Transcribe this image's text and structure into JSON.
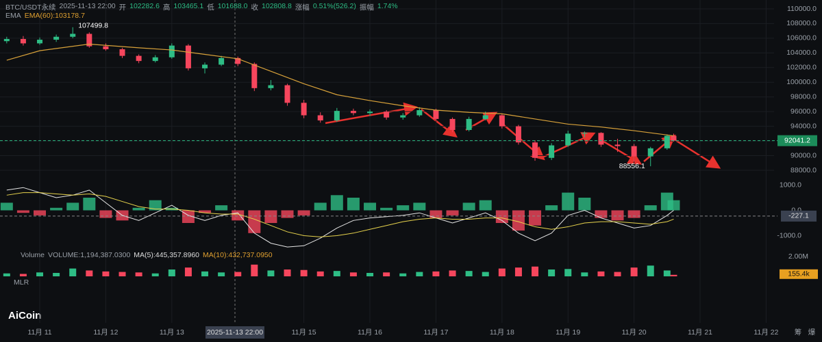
{
  "header": {
    "symbol": "BTC/USDT永续",
    "datetime": "2025-11-13 22:00",
    "open_label": "开",
    "open": "102282.6",
    "high_label": "高",
    "high": "103465.1",
    "low_label": "低",
    "low": "101688.0",
    "close_label": "收",
    "close": "102808.8",
    "change_label": "涨幅",
    "change": "0.51%(526.2)",
    "amp_label": "振幅",
    "amp": "1.74%"
  },
  "ema_panel": {
    "name": "EMA",
    "value": "EMA(60):103178.7"
  },
  "volume_panel": {
    "name": "Volume",
    "volume": "VOLUME:1,194,387.0300",
    "ma5": "MA(5):445,357.8960",
    "ma10": "MA(10):432,737.0950"
  },
  "mlr_label": "MLR",
  "logo": "AiCoin",
  "crosshair_label": "2025-11-13 22:00",
  "side_icons": [
    "筹",
    "爆"
  ],
  "chart_data": [
    {
      "type": "candlestick",
      "up_color": "#2ebd85",
      "down_color": "#f6465d",
      "xlim": [
        10.45,
        22.12
      ],
      "ylim": [
        86230,
        110930
      ],
      "xticks": [
        {
          "value": 11,
          "label": "11月 11"
        },
        {
          "value": 12,
          "label": "11月 12"
        },
        {
          "value": 13,
          "label": "11月 13"
        },
        {
          "value": 15,
          "label": "11月 15"
        },
        {
          "value": 16,
          "label": "11月 16"
        },
        {
          "value": 17,
          "label": "11月 17"
        },
        {
          "value": 18,
          "label": "11月 18"
        },
        {
          "value": 19,
          "label": "11月 19"
        },
        {
          "value": 20,
          "label": "11月 20"
        },
        {
          "value": 21,
          "label": "11月 21"
        },
        {
          "value": 22,
          "label": "11月 22"
        }
      ],
      "yticks": [
        {
          "value": 88000,
          "label": "88000.0"
        },
        {
          "value": 90000,
          "label": "90000.0"
        },
        {
          "value": 92000,
          "label": "92000.0"
        },
        {
          "value": 94000,
          "label": "94000.0"
        },
        {
          "value": 96000,
          "label": "96000.0"
        },
        {
          "value": 98000,
          "label": "98000.0"
        },
        {
          "value": 100000,
          "label": "100000.0"
        },
        {
          "value": 102000,
          "label": "102000.0"
        },
        {
          "value": 104000,
          "label": "104000.0"
        },
        {
          "value": 106000,
          "label": "106000.0"
        },
        {
          "value": 108000,
          "label": "108000.0"
        },
        {
          "value": 110000,
          "label": "110000.0"
        }
      ],
      "x": [
        10.5,
        10.75,
        11,
        11.25,
        11.5,
        11.75,
        12,
        12.25,
        12.5,
        12.75,
        13,
        13.25,
        13.5,
        13.75,
        14,
        14.25,
        14.5,
        14.75,
        15,
        15.25,
        15.5,
        15.75,
        16,
        16.25,
        16.5,
        16.75,
        17,
        17.25,
        17.5,
        17.75,
        18,
        18.25,
        18.5,
        18.75,
        19,
        19.25,
        19.5,
        19.75,
        20,
        20.25,
        20.5,
        20.6
      ],
      "open": [
        105600,
        105900,
        105300,
        105800,
        106200,
        106600,
        104900,
        104500,
        103600,
        102900,
        103400,
        105000,
        101900,
        102400,
        103300,
        102500,
        99200,
        99600,
        97200,
        95500,
        94800,
        96100,
        95800,
        96000,
        95200,
        95500,
        96200,
        95000,
        93500,
        95000,
        95500,
        94000,
        91800,
        89700,
        91400,
        93000,
        93100,
        91500,
        91300,
        89900,
        91000,
        92700
      ],
      "high": [
        106200,
        106300,
        106100,
        106500,
        107499.8,
        106800,
        105300,
        104700,
        103800,
        103700,
        105300,
        105200,
        102700,
        103600,
        103500,
        102700,
        100300,
        99800,
        97600,
        95900,
        96500,
        96400,
        96300,
        96200,
        95800,
        96600,
        96400,
        95200,
        95300,
        96000,
        95700,
        94200,
        92100,
        91700,
        93400,
        93300,
        93200,
        92300,
        91600,
        91200,
        92900,
        93000
      ],
      "low": [
        105300,
        105000,
        105100,
        105500,
        106000,
        104700,
        104300,
        103300,
        102600,
        102700,
        103200,
        101600,
        101200,
        102200,
        102200,
        98800,
        98900,
        96800,
        95100,
        94500,
        94600,
        95500,
        95400,
        94900,
        94900,
        95300,
        94800,
        93200,
        93300,
        94800,
        93700,
        91500,
        89300,
        89400,
        91200,
        92500,
        91200,
        90500,
        89200,
        88556.1,
        90800,
        91900
      ],
      "close": [
        105900,
        105300,
        105800,
        106200,
        106600,
        104900,
        104500,
        103600,
        102900,
        103400,
        105000,
        101900,
        102400,
        103300,
        102500,
        99200,
        99600,
        97200,
        95500,
        94800,
        96100,
        95800,
        96000,
        95200,
        95500,
        96200,
        95000,
        93500,
        95000,
        95500,
        94000,
        91800,
        89700,
        91400,
        93000,
        93100,
        91500,
        91300,
        89900,
        91000,
        92700,
        92041.2
      ],
      "lines": [
        {
          "color": "#d9a23a",
          "x": [
            10.5,
            11,
            11.75,
            12.5,
            13,
            13.5,
            14,
            14.5,
            15,
            15.5,
            16,
            16.5,
            17,
            17.5,
            18,
            18.5,
            19,
            19.5,
            20,
            20.6
          ],
          "values": [
            103000,
            104300,
            105200,
            104700,
            104400,
            103800,
            103200,
            101500,
            99800,
            98300,
            97500,
            96800,
            96200,
            95900,
            95700,
            95000,
            94300,
            93900,
            93400,
            92700
          ]
        }
      ],
      "annotations": [
        {
          "x": 11.5,
          "value": 107499.8,
          "label": "107499.8"
        },
        {
          "x": 20.25,
          "value": 88556.1,
          "label": "88556.1"
        }
      ],
      "last_price": {
        "value": 92041.2,
        "label": "92041.2"
      }
    },
    {
      "type": "macd",
      "up_color": "#2ebd85",
      "down_color": "#f6465d",
      "xlim": [
        10.45,
        22.12
      ],
      "ylim": [
        -1500,
        1230
      ],
      "yticks": [
        {
          "value": 1000,
          "label": "1000.0"
        },
        {
          "value": 0,
          "label": "0.0"
        },
        {
          "value": -1000,
          "label": "-1000.0"
        }
      ],
      "x": [
        10.5,
        10.75,
        11,
        11.25,
        11.5,
        11.75,
        12,
        12.25,
        12.5,
        12.75,
        13,
        13.25,
        13.5,
        13.75,
        14,
        14.25,
        14.5,
        14.75,
        15,
        15.25,
        15.5,
        15.75,
        16,
        16.25,
        16.5,
        16.75,
        17,
        17.25,
        17.5,
        17.75,
        18,
        18.25,
        18.5,
        18.75,
        19,
        19.25,
        19.5,
        19.75,
        20,
        20.25,
        20.5,
        20.6
      ],
      "values": [
        300,
        -100,
        -200,
        100,
        300,
        500,
        -300,
        -400,
        100,
        400,
        100,
        -500,
        -100,
        200,
        -400,
        -900,
        -500,
        -300,
        -200,
        300,
        600,
        500,
        300,
        100,
        200,
        300,
        -300,
        -200,
        300,
        400,
        -500,
        -800,
        -600,
        200,
        700,
        500,
        -300,
        -400,
        -300,
        200,
        700,
        400
      ],
      "lines": [
        {
          "color": "#e6e6e6",
          "values": [
            800,
            900,
            700,
            500,
            600,
            800,
            300,
            -200,
            -400,
            -100,
            200,
            -200,
            -400,
            -200,
            -100,
            -900,
            -1300,
            -1450,
            -1400,
            -1100,
            -700,
            -400,
            -300,
            -250,
            -200,
            -100,
            -300,
            -500,
            -300,
            -100,
            -400,
            -900,
            -1200,
            -900,
            -200,
            0,
            -300,
            -500,
            -700,
            -600,
            -200,
            0
          ]
        },
        {
          "color": "#e8d44d",
          "values": [
            600,
            700,
            700,
            650,
            600,
            650,
            550,
            350,
            150,
            50,
            50,
            0,
            -100,
            -150,
            -150,
            -350,
            -600,
            -850,
            -1000,
            -1050,
            -1000,
            -900,
            -750,
            -600,
            -450,
            -350,
            -300,
            -350,
            -350,
            -300,
            -300,
            -450,
            -650,
            -750,
            -650,
            -500,
            -450,
            -450,
            -500,
            -550,
            -450,
            -350
          ]
        }
      ],
      "last_value": {
        "value": -227.1,
        "label": "-227.1"
      }
    },
    {
      "type": "volume",
      "xlim": [
        10.45,
        22.12
      ],
      "ylim": [
        0,
        2100000
      ],
      "yticks": [
        {
          "value": 2000000,
          "label": "2.00M"
        }
      ],
      "x": [
        10.5,
        10.75,
        11,
        11.25,
        11.5,
        11.75,
        12,
        12.25,
        12.5,
        12.75,
        13,
        13.25,
        13.5,
        13.75,
        14,
        14.25,
        14.5,
        14.75,
        15,
        15.25,
        15.5,
        15.75,
        16,
        16.25,
        16.5,
        16.75,
        17,
        17.25,
        17.5,
        17.75,
        18,
        18.25,
        18.5,
        18.75,
        19,
        19.25,
        19.5,
        19.75,
        20,
        20.25,
        20.5,
        20.6
      ],
      "values": [
        300000,
        250000,
        400000,
        350000,
        800000,
        600000,
        500000,
        450000,
        400000,
        300000,
        700000,
        900000,
        500000,
        400000,
        450000,
        1200000,
        600000,
        700000,
        650000,
        500000,
        550000,
        400000,
        350000,
        400000,
        300000,
        450000,
        500000,
        600000,
        550000,
        450000,
        800000,
        900000,
        1000000,
        700000,
        750000,
        400000,
        500000,
        450000,
        900000,
        1100000,
        600000,
        155400
      ],
      "last_value": {
        "value": 155400,
        "label": "155.4k"
      }
    }
  ]
}
